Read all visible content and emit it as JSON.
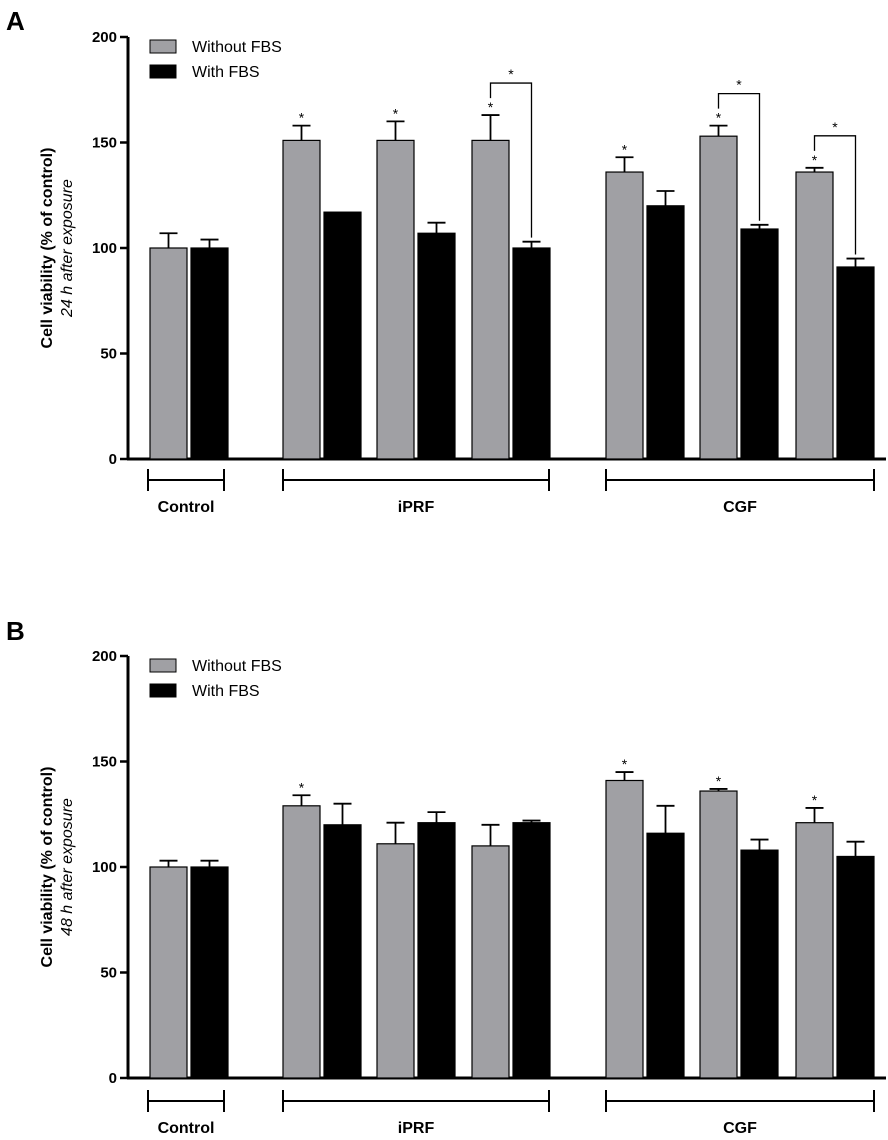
{
  "colors": {
    "without_fbs": "#a0a0a4",
    "with_fbs": "#000000",
    "axis": "#000000"
  },
  "chart_data": [
    {
      "type": "bar",
      "panel": "A",
      "ylabel": "Cell viability (% of control)",
      "ylabel_sub": "24 h after exposure",
      "ylim": [
        0,
        200
      ],
      "yticks": [
        0,
        50,
        100,
        150,
        200
      ],
      "legend": {
        "position": "top-left",
        "entries": [
          "Without FBS",
          "With FBS"
        ]
      },
      "groups": [
        {
          "label": "Control",
          "pairs": [
            0
          ]
        },
        {
          "label": "iPRF",
          "pairs": [
            1,
            2,
            3
          ]
        },
        {
          "label": "CGF",
          "pairs": [
            4,
            5,
            6
          ]
        }
      ],
      "series": [
        {
          "name": "Without FBS",
          "values": [
            100,
            151,
            151,
            151,
            136,
            153,
            136
          ],
          "errors": [
            7,
            7,
            9,
            12,
            7,
            5,
            2
          ]
        },
        {
          "name": "With FBS",
          "values": [
            100,
            117,
            107,
            100,
            120,
            109,
            91
          ],
          "errors": [
            4,
            0,
            5,
            3,
            7,
            2,
            4
          ]
        }
      ],
      "stars_without": [
        false,
        true,
        true,
        true,
        true,
        true,
        true
      ],
      "comparisons": [
        {
          "pair": 3,
          "label": "*"
        },
        {
          "pair": 5,
          "label": "*"
        },
        {
          "pair": 6,
          "label": "*"
        }
      ]
    },
    {
      "type": "bar",
      "panel": "B",
      "ylabel": "Cell viability (% of control)",
      "ylabel_sub": "48 h after exposure",
      "ylim": [
        0,
        200
      ],
      "yticks": [
        0,
        50,
        100,
        150,
        200
      ],
      "legend": {
        "position": "top-left",
        "entries": [
          "Without FBS",
          "With FBS"
        ]
      },
      "groups": [
        {
          "label": "Control",
          "pairs": [
            0
          ]
        },
        {
          "label": "iPRF",
          "pairs": [
            1,
            2,
            3
          ]
        },
        {
          "label": "CGF",
          "pairs": [
            4,
            5,
            6
          ]
        }
      ],
      "series": [
        {
          "name": "Without FBS",
          "values": [
            100,
            129,
            111,
            110,
            141,
            136,
            121
          ],
          "errors": [
            3,
            5,
            10,
            10,
            4,
            1,
            7
          ]
        },
        {
          "name": "With FBS",
          "values": [
            100,
            120,
            121,
            121,
            116,
            108,
            105
          ],
          "errors": [
            3,
            10,
            5,
            1,
            13,
            5,
            7
          ]
        }
      ],
      "stars_without": [
        false,
        true,
        false,
        false,
        true,
        true,
        true
      ],
      "comparisons": []
    }
  ]
}
